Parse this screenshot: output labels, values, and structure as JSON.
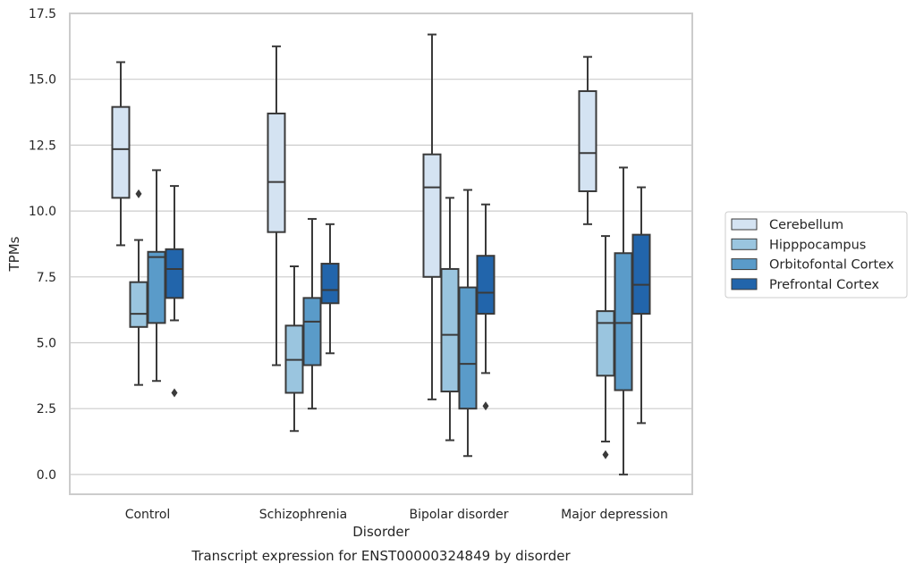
{
  "chart_data": {
    "type": "box",
    "title": "",
    "caption": "Transcript expression for ENST00000324849 by disorder",
    "xlabel": "Disorder",
    "ylabel": "TPMs",
    "ylim": [
      -0.75,
      17.5
    ],
    "yticks": [
      "0.0",
      "2.5",
      "5.0",
      "7.5",
      "10.0",
      "12.5",
      "15.0",
      "17.5"
    ],
    "grid": "horizontal",
    "legend_position": "right",
    "categories": [
      "Control",
      "Schizophrenia",
      "Bipolar disorder",
      "Major depression"
    ],
    "series": [
      {
        "name": "Cerebellum",
        "color": "#d4e3f2",
        "boxes": [
          {
            "whislo": 8.7,
            "q1": 10.5,
            "med": 12.35,
            "q3": 13.95,
            "whishi": 15.65,
            "fliers": []
          },
          {
            "whislo": 4.15,
            "q1": 9.2,
            "med": 11.1,
            "q3": 13.7,
            "whishi": 16.25,
            "fliers": []
          },
          {
            "whislo": 2.85,
            "q1": 7.5,
            "med": 10.9,
            "q3": 12.15,
            "whishi": 16.7,
            "fliers": []
          },
          {
            "whislo": 9.5,
            "q1": 10.75,
            "med": 12.2,
            "q3": 14.55,
            "whishi": 15.85,
            "fliers": []
          }
        ]
      },
      {
        "name": "Hipppocampus",
        "color": "#9ac5df",
        "boxes": [
          {
            "whislo": 3.4,
            "q1": 5.6,
            "med": 6.1,
            "q3": 7.3,
            "whishi": 8.9,
            "fliers": [
              10.65
            ]
          },
          {
            "whislo": 1.65,
            "q1": 3.1,
            "med": 4.35,
            "q3": 5.65,
            "whishi": 7.9,
            "fliers": []
          },
          {
            "whislo": 1.3,
            "q1": 3.15,
            "med": 5.3,
            "q3": 7.8,
            "whishi": 10.5,
            "fliers": []
          },
          {
            "whislo": 1.25,
            "q1": 3.75,
            "med": 5.75,
            "q3": 6.2,
            "whishi": 9.05,
            "fliers": [
              0.75
            ]
          }
        ]
      },
      {
        "name": "Orbitofontal Cortex",
        "color": "#5a9bc9",
        "boxes": [
          {
            "whislo": 3.55,
            "q1": 5.75,
            "med": 8.25,
            "q3": 8.45,
            "whishi": 11.55,
            "fliers": []
          },
          {
            "whislo": 2.5,
            "q1": 4.15,
            "med": 5.8,
            "q3": 6.7,
            "whishi": 9.7,
            "fliers": []
          },
          {
            "whislo": 0.7,
            "q1": 2.5,
            "med": 4.2,
            "q3": 7.1,
            "whishi": 10.8,
            "fliers": []
          },
          {
            "whislo": 0.0,
            "q1": 3.2,
            "med": 5.75,
            "q3": 8.4,
            "whishi": 11.65,
            "fliers": []
          }
        ]
      },
      {
        "name": "Prefrontal Cortex",
        "color": "#2265ab",
        "boxes": [
          {
            "whislo": 5.85,
            "q1": 6.7,
            "med": 7.8,
            "q3": 8.55,
            "whishi": 10.95,
            "fliers": [
              3.1
            ]
          },
          {
            "whislo": 4.6,
            "q1": 6.5,
            "med": 7.0,
            "q3": 8.0,
            "whishi": 9.5,
            "fliers": []
          },
          {
            "whislo": 3.85,
            "q1": 6.1,
            "med": 6.9,
            "q3": 8.3,
            "whishi": 10.25,
            "fliers": [
              2.6
            ]
          },
          {
            "whislo": 1.95,
            "q1": 6.1,
            "med": 7.2,
            "q3": 9.1,
            "whishi": 10.9,
            "fliers": []
          }
        ]
      }
    ]
  }
}
